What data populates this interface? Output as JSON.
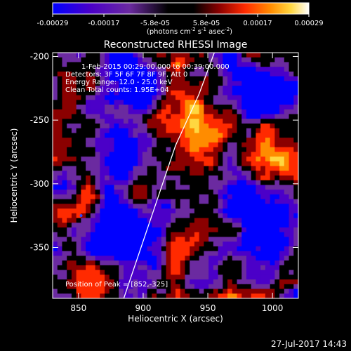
{
  "chart_data": {
    "type": "heatmap",
    "title": "Reconstructed RHESSI Image",
    "xlabel": "Heliocentric X (arcsec)",
    "ylabel": "Heliocentric Y (arcsec)",
    "xlim": [
      830,
      1020
    ],
    "ylim": [
      -390,
      -197
    ],
    "x_ticks": [
      850,
      900,
      950,
      1000
    ],
    "y_ticks": [
      -350,
      -300,
      -250,
      -200
    ],
    "annotations": [
      "1-Feb-2015 00:29:00.000 to 00:39:00.000",
      "Detectors: 3F 5F 6F 7F 8F 9F, Att 0",
      "Energy Range: 12.0 - 25.0 keV",
      "Clean     Total counts: 1.95E+04"
    ],
    "peak_label": "Position of Peak = [852,-325]",
    "peak": [
      852,
      -325
    ],
    "colorbar": {
      "min": -0.00029,
      "max": 0.00029,
      "tick_labels": [
        "-0.00029",
        "-0.00017",
        "-5.8e-05",
        "5.8e-05",
        "0.00017",
        "0.00029"
      ],
      "units_label": "(photons cm",
      "units_sup1": "-2",
      "units_mid1": " s",
      "units_sup2": "-1",
      "units_mid2": " asec",
      "units_sup3": "-2",
      "units_end": ")",
      "colors": [
        "#0000ff",
        "#4b00c8",
        "#6b2aa0",
        "#000000",
        "#8b0000",
        "#ff2a00",
        "#ff8c00",
        "#ffd740",
        "#ffffff"
      ]
    },
    "limb_curve": [
      [
        885,
        -390
      ],
      [
        905,
        -330
      ],
      [
        925,
        -270
      ],
      [
        943,
        -230
      ],
      [
        955,
        -197
      ]
    ]
  },
  "footer": {
    "timestamp": "27-Jul-2017 14:43"
  }
}
